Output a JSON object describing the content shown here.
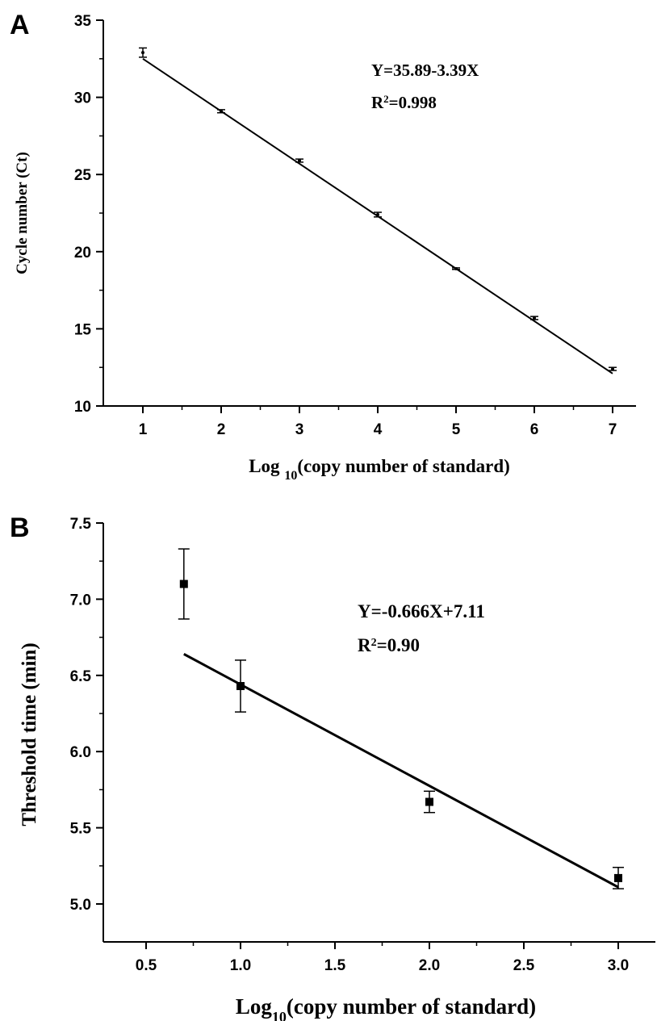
{
  "chart_data": [
    {
      "panel": "A",
      "type": "scatter",
      "title": "",
      "xlabel": {
        "prefix": "Log ",
        "sub": "10",
        "suffix": "(copy number of standard)"
      },
      "ylabel": "Cycle number (Ct)",
      "xlim": [
        0.5,
        7.5
      ],
      "ylim": [
        10,
        35
      ],
      "xticks": [
        1,
        2,
        3,
        4,
        5,
        6,
        7
      ],
      "xtick_labels": [
        "1",
        "2",
        "3",
        "4",
        "5",
        "6",
        "7"
      ],
      "yticks": [
        10,
        15,
        20,
        25,
        30,
        35
      ],
      "ytick_labels": [
        "10",
        "15",
        "20",
        "25",
        "30",
        "35"
      ],
      "points": [
        {
          "x": 1,
          "y": 32.9,
          "err": 0.3
        },
        {
          "x": 2,
          "y": 29.1,
          "err": 0.1
        },
        {
          "x": 3,
          "y": 25.9,
          "err": 0.1
        },
        {
          "x": 4,
          "y": 22.4,
          "err": 0.15
        },
        {
          "x": 5,
          "y": 18.9,
          "err": 0.05
        },
        {
          "x": 6,
          "y": 15.7,
          "err": 0.1
        },
        {
          "x": 7,
          "y": 12.4,
          "err": 0.1
        }
      ],
      "marker": "dot",
      "fit_line": {
        "x0": 1,
        "y0": 32.5,
        "x1": 7,
        "y1": 12.1
      },
      "annotation": {
        "equation": "Y=35.89-3.39X",
        "r2_prefix": "R",
        "r2_sup": "2",
        "r2_value": "=0.998"
      },
      "grid": false,
      "legend": "none"
    },
    {
      "panel": "B",
      "type": "scatter",
      "title": "",
      "xlabel": {
        "prefix": "Log",
        "sub": "10",
        "suffix": "(copy number of standard)"
      },
      "ylabel": "Threshold time (min)",
      "xlim": [
        0.25,
        3.2
      ],
      "ylim": [
        4.8,
        7.5
      ],
      "xticks": [
        0.5,
        1.0,
        1.5,
        2.0,
        2.5,
        3.0
      ],
      "xtick_labels": [
        "0.5",
        "1.0",
        "1.5",
        "2.0",
        "2.5",
        "3.0"
      ],
      "yticks": [
        5.0,
        5.5,
        6.0,
        6.5,
        7.0,
        7.5
      ],
      "ytick_labels": [
        "5.0",
        "5.5",
        "6.0",
        "6.5",
        "7.0",
        "7.5"
      ],
      "points": [
        {
          "x": 0.7,
          "y": 7.1,
          "err": 0.23
        },
        {
          "x": 1.0,
          "y": 6.43,
          "err": 0.17
        },
        {
          "x": 2.0,
          "y": 5.67,
          "err": 0.07
        },
        {
          "x": 3.0,
          "y": 5.17,
          "err": 0.07
        }
      ],
      "marker": "square",
      "fit_line": {
        "x0": 0.7,
        "y0": 6.64,
        "x1": 3.0,
        "y1": 5.11
      },
      "annotation": {
        "equation": "Y=-0.666X+7.11",
        "r2_prefix": "R",
        "r2_sup": "2",
        "r2_value": "=0.90"
      },
      "grid": false,
      "legend": "none"
    }
  ]
}
